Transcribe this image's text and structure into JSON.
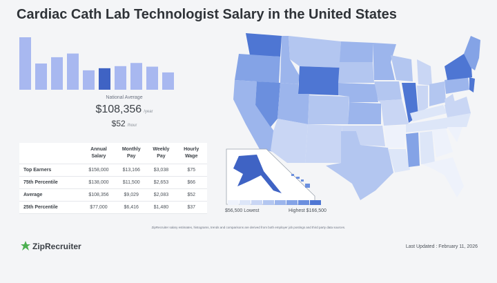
{
  "page": {
    "title": "Cardiac Cath Lab Technologist Salary in the United States",
    "national_average_label": "National Average",
    "yearly_value": "$108,356",
    "yearly_unit": "/year",
    "hourly_value": "$52",
    "hourly_unit": "/hour",
    "disclaimer": "ZipRecruiter salary estimates, histograms, trends and comparisons are derived from both employer job postings and third party data sources.",
    "brand": "ZipRecruiter",
    "last_updated": "Last Updated : February 11, 2026"
  },
  "table": {
    "headers": [
      "",
      "Annual Salary",
      "Monthly Pay",
      "Weekly Pay",
      "Hourly Wage"
    ],
    "rows": [
      [
        "Top Earners",
        "$158,000",
        "$13,166",
        "$3,038",
        "$75"
      ],
      [
        "75th Percentile",
        "$138,000",
        "$11,500",
        "$2,653",
        "$66"
      ],
      [
        "Average",
        "$108,356",
        "$9,029",
        "$2,083",
        "$52"
      ],
      [
        "25th Percentile",
        "$77,000",
        "$6,416",
        "$1,480",
        "$37"
      ]
    ]
  },
  "legend": {
    "low": "$56,500 Lowest",
    "high": "Highest $166,500",
    "colors": [
      "#eef2fb",
      "#dde6f8",
      "#c9d6f4",
      "#b3c6f0",
      "#9cb5ec",
      "#84a3e6",
      "#6b8fde",
      "#4e76d3"
    ]
  },
  "colors": {
    "accent": "#3f63c4",
    "bar": "#a8b8f0",
    "brand_green": "#4caf50"
  },
  "chart_data": {
    "type": "bar",
    "categories": [
      "1",
      "2",
      "3",
      "4",
      "5",
      "6",
      "7",
      "8",
      "9",
      "10"
    ],
    "values": [
      100,
      50,
      62,
      69,
      37,
      41,
      45,
      51,
      44,
      33
    ],
    "highlight_index": 5,
    "xlabel": "",
    "ylabel": "",
    "ylim": [
      0,
      100
    ],
    "grid": false
  },
  "map_data": {
    "type": "choropleth",
    "region": "United States",
    "highest_states": [
      "New York",
      "Washington",
      "Nevada",
      "Wyoming",
      "New Jersey",
      "Massachusetts",
      "Alaska"
    ],
    "lowest_states": [
      "Florida",
      "Georgia",
      "Alabama",
      "Tennessee",
      "Kentucky",
      "South Carolina",
      "Arkansas"
    ]
  }
}
